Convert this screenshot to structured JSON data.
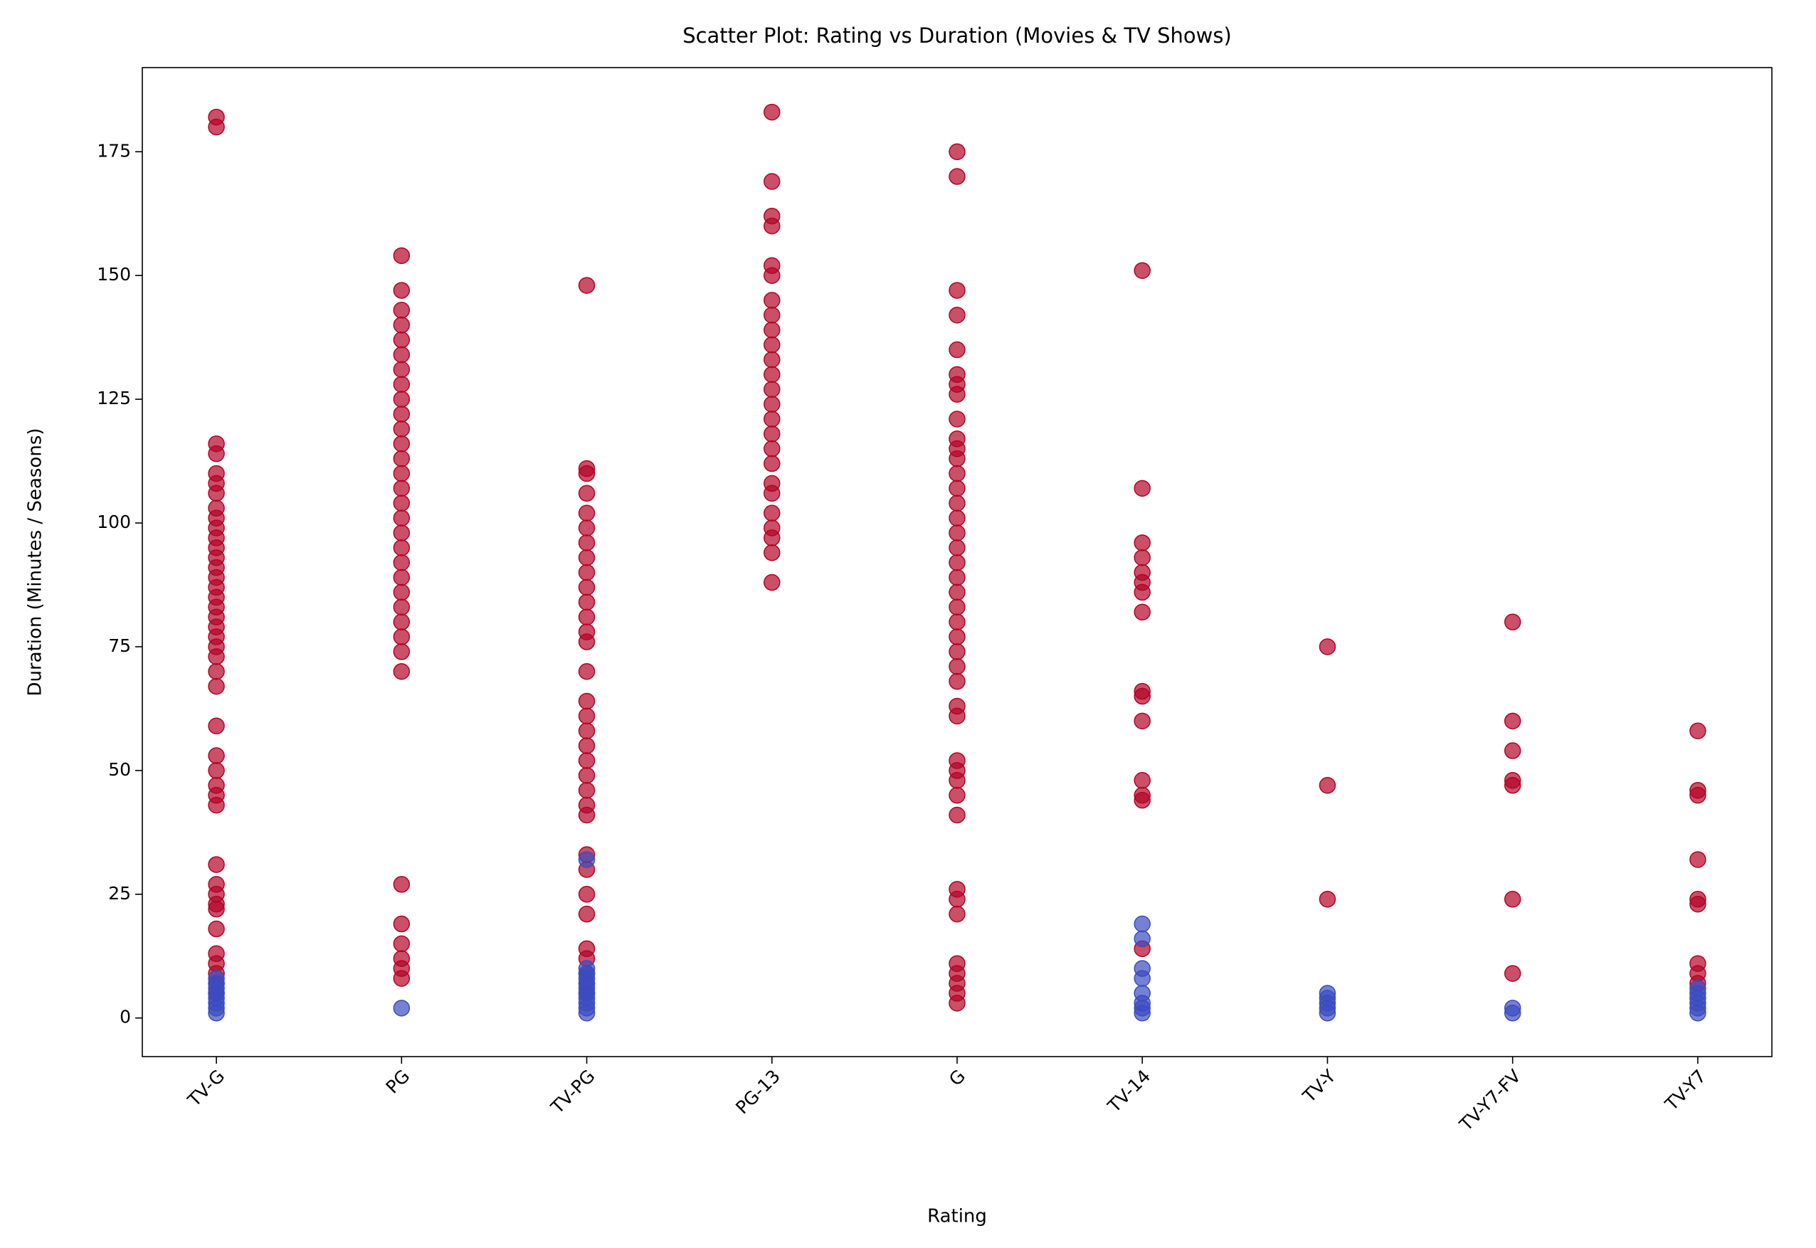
{
  "chart_data": {
    "type": "scatter",
    "title": "Scatter Plot: Rating vs Duration (Movies & TV Shows)",
    "x_label": "Rating",
    "y_label": "Duration (Minutes / Seasons)",
    "categories": [
      "TV-G",
      "PG",
      "TV-PG",
      "PG-13",
      "G",
      "TV-14",
      "TV-Y",
      "TV-Y7-FV",
      "TV-Y7"
    ],
    "xlim": [
      -0.4,
      8.4
    ],
    "ylim": [
      -7.8,
      192
    ],
    "yticks": [
      0,
      25,
      50,
      75,
      100,
      125,
      150,
      175
    ],
    "grid": false,
    "series": [
      {
        "color": "#b40426",
        "values": [
          [
            182,
            180,
            116,
            114,
            110,
            108,
            106,
            103,
            101,
            99,
            97,
            95,
            93,
            91,
            89,
            87,
            85,
            83,
            81,
            79,
            77,
            75,
            73,
            70,
            67,
            59,
            53,
            50,
            47,
            45,
            43,
            31,
            27,
            25,
            23,
            22,
            18,
            13,
            11,
            9,
            7,
            5
          ],
          [
            154,
            147,
            143,
            140,
            137,
            134,
            131,
            128,
            125,
            122,
            119,
            116,
            113,
            110,
            107,
            104,
            101,
            98,
            95,
            92,
            89,
            86,
            83,
            80,
            77,
            74,
            70,
            27,
            19,
            15,
            12,
            10,
            8
          ],
          [
            148,
            111,
            110,
            106,
            102,
            99,
            96,
            93,
            90,
            87,
            84,
            81,
            78,
            76,
            70,
            64,
            61,
            58,
            55,
            52,
            49,
            46,
            43,
            41,
            33,
            30,
            25,
            21,
            14,
            12,
            9,
            7,
            5
          ],
          [
            183,
            169,
            162,
            160,
            152,
            150,
            145,
            142,
            139,
            136,
            133,
            130,
            127,
            124,
            121,
            118,
            115,
            112,
            108,
            106,
            102,
            99,
            97,
            94,
            88
          ],
          [
            175,
            170,
            147,
            142,
            135,
            130,
            128,
            126,
            121,
            117,
            115,
            113,
            110,
            107,
            104,
            101,
            98,
            95,
            92,
            89,
            86,
            83,
            80,
            77,
            74,
            71,
            68,
            63,
            61,
            52,
            50,
            48,
            45,
            41,
            26,
            24,
            21,
            11,
            9,
            7,
            5,
            3
          ],
          [
            151,
            107,
            96,
            93,
            90,
            88,
            86,
            82,
            66,
            65,
            60,
            48,
            45,
            44,
            14
          ],
          [
            75,
            47,
            24
          ],
          [
            80,
            60,
            54,
            48,
            47,
            24,
            9
          ],
          [
            58,
            46,
            45,
            32,
            24,
            23,
            11,
            9,
            7
          ]
        ]
      },
      {
        "color": "#3b4cc0",
        "values": [
          [
            1,
            2,
            3,
            4,
            5,
            6,
            7,
            8
          ],
          [
            2
          ],
          [
            1,
            2,
            3,
            4,
            5,
            6,
            7,
            8,
            9,
            10,
            32
          ],
          [],
          [],
          [
            19,
            16,
            10,
            8,
            5,
            3,
            2,
            1
          ],
          [
            5,
            4,
            3,
            2,
            1
          ],
          [
            2,
            1
          ],
          [
            6,
            5,
            4,
            3,
            2,
            1
          ]
        ]
      }
    ]
  }
}
